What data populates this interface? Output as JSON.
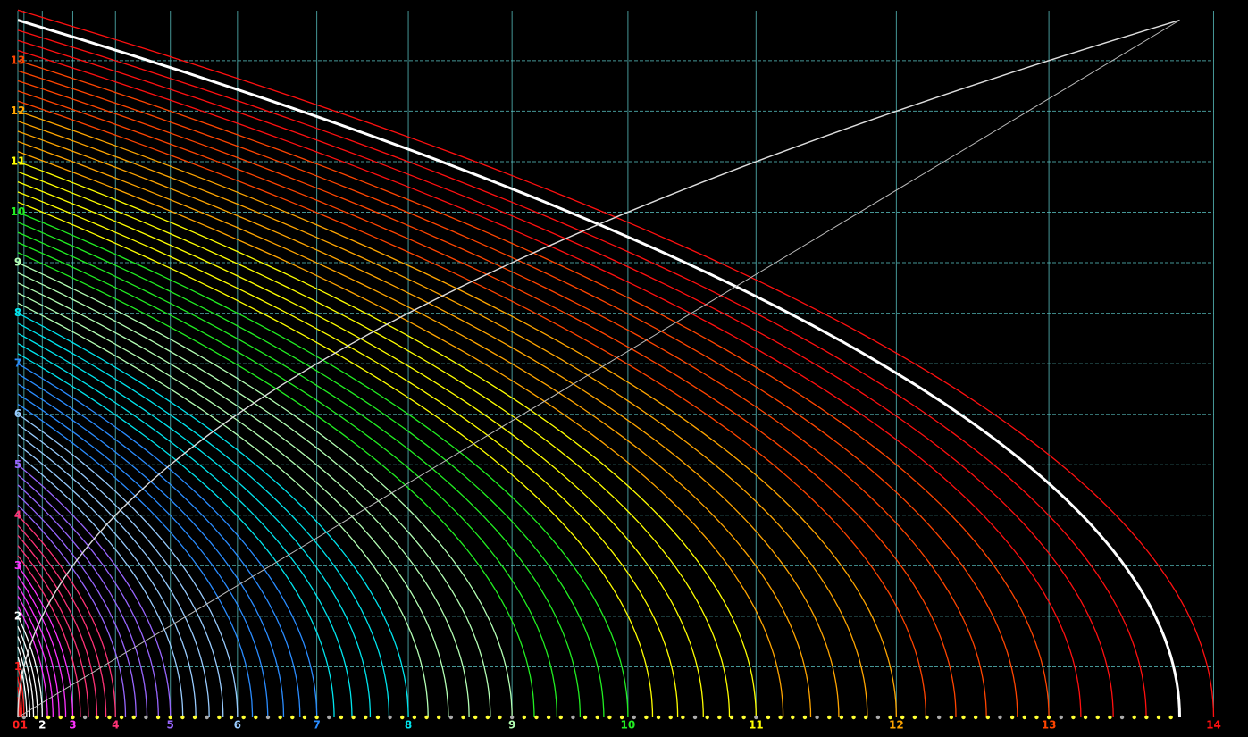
{
  "chart_data": {
    "type": "squared-arcs",
    "x_scale": "square",
    "xlim": [
      0,
      14.2
    ],
    "ylim": [
      0,
      14.2
    ],
    "xticks": [
      0,
      1,
      2,
      3,
      4,
      5,
      6,
      7,
      8,
      9,
      10,
      11,
      12,
      13,
      14
    ],
    "yticks": [
      1,
      2,
      3,
      4,
      5,
      6,
      7,
      8,
      9,
      10,
      11,
      12,
      13
    ],
    "tick_colors": [
      "#ff2020",
      "#ff2020",
      "#ffffff",
      "#ff33ff",
      "#ff3377",
      "#9966ff",
      "#99ccff",
      "#2a8cff",
      "#00e5ee",
      "#b4ffb4",
      "#22ee22",
      "#ffff00",
      "#ffa500",
      "#ff4500",
      "#ff1010"
    ],
    "grid": true,
    "grid_color": "#5cc8c8",
    "background": "#000000",
    "highlight_radius": 13.8,
    "highlight_color": "#ffffff",
    "arc_radii": [
      0.2,
      0.4,
      0.6,
      0.8,
      1.0,
      1.2,
      1.4,
      1.6,
      1.8,
      2.0,
      2.2,
      2.4,
      2.6,
      2.8,
      3.0,
      3.2,
      3.4,
      3.6,
      3.8,
      4.0,
      4.2,
      4.4,
      4.6,
      4.8,
      5.0,
      5.2,
      5.4,
      5.6,
      5.8,
      6.0,
      6.2,
      6.4,
      6.6,
      6.8,
      7.0,
      7.2,
      7.4,
      7.6,
      7.8,
      8.0,
      8.2,
      8.4,
      8.6,
      8.8,
      9.0,
      9.2,
      9.4,
      9.6,
      9.8,
      10.0,
      10.2,
      10.4,
      10.6,
      10.8,
      11.0,
      11.2,
      11.4,
      11.6,
      11.8,
      12.0,
      12.2,
      12.4,
      12.6,
      12.8,
      13.0,
      13.2,
      13.4,
      13.6,
      13.8,
      14.0
    ]
  }
}
